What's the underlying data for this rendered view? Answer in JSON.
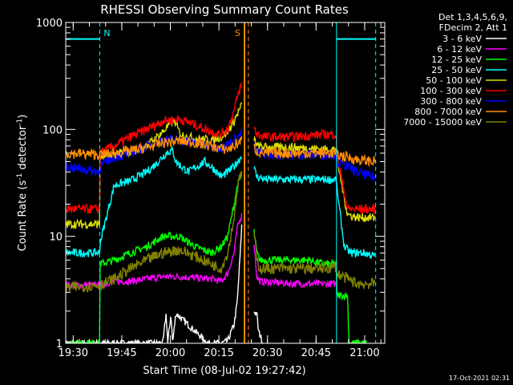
{
  "chart_data": {
    "type": "line",
    "title": "RHESSI Observing Summary Count Rates",
    "xlabel": "Start Time (08-Jul-02 19:27:42)",
    "ylabel": "Count Rate (s",
    "ylabel_sup": "-1",
    "ylabel_mid": " detector",
    "ylabel_sup2": "-1",
    "ylabel_end": ")",
    "x_unit": "minutes after 19:27:42",
    "xlim": [
      0,
      98.5
    ],
    "ylim": [
      1,
      1000
    ],
    "yscale": "log",
    "x_ticks": [
      {
        "value": 2.3,
        "label": "19:30"
      },
      {
        "value": 17.3,
        "label": "19:45"
      },
      {
        "value": 32.3,
        "label": "20:00"
      },
      {
        "value": 47.3,
        "label": "20:15"
      },
      {
        "value": 62.3,
        "label": "20:30"
      },
      {
        "value": 77.3,
        "label": "20:45"
      },
      {
        "value": 92.3,
        "label": "21:00"
      }
    ],
    "y_ticks": [
      {
        "value": 1,
        "label": "1"
      },
      {
        "value": 10,
        "label": "10"
      },
      {
        "value": 100,
        "label": "100"
      },
      {
        "value": 1000,
        "label": "1000"
      }
    ],
    "legend": {
      "position": "top-right",
      "header": [
        "Det 1,3,4,5,6,9,",
        "FDecim 2, Att 1"
      ],
      "entries": [
        {
          "label": "3 - 6 keV",
          "color": "#ffffff"
        },
        {
          "label": "6 - 12 keV",
          "color": "#ff00ff"
        },
        {
          "label": "12 - 25 keV",
          "color": "#00ff00"
        },
        {
          "label": "25 - 50 keV",
          "color": "#00ffff"
        },
        {
          "label": "50 - 100 keV",
          "color": "#dddd00"
        },
        {
          "label": "100 - 300 keV",
          "color": "#ff0000"
        },
        {
          "label": "300 - 800 keV",
          "color": "#0000ff"
        },
        {
          "label": "800 - 7000 keV",
          "color": "#ff8c00"
        },
        {
          "label": "7000 - 15000 keV",
          "color": "#808000"
        }
      ]
    },
    "markers": [
      {
        "label": "N",
        "x": 10.5,
        "color": "#00ffff",
        "style": "dashed"
      },
      {
        "label": "",
        "x": 0,
        "color": "#00ffff",
        "style": "solid"
      },
      {
        "label": "S",
        "x": 55.2,
        "color": "#ff8c00",
        "style": "solid"
      },
      {
        "label": "",
        "x": 56.4,
        "color": "#ff8c00",
        "style": "dashed"
      },
      {
        "label": "",
        "x": 83.6,
        "color": "#00ffff",
        "style": "solid"
      },
      {
        "label": "",
        "x": 95.7,
        "color": "#00ffff",
        "style": "dashed"
      }
    ],
    "night_level": {
      "value": 700,
      "color": "#00ffff",
      "segments": [
        [
          0,
          10.5
        ],
        [
          83.6,
          95.7
        ]
      ]
    },
    "gaps": [
      [
        54.5,
        58
      ]
    ],
    "series": [
      {
        "name": "3 - 6 keV",
        "color": "#ffffff",
        "x": [
          0,
          10.5,
          10.5,
          30,
          31,
          31.5,
          32.5,
          33,
          34,
          44,
          46,
          48,
          50,
          52,
          53,
          54,
          54.5,
          58,
          59,
          59.5,
          61
        ],
        "y": [
          1,
          1,
          1,
          1,
          1.9,
          1,
          1.9,
          1,
          1.9,
          1,
          1,
          1,
          1.05,
          1.5,
          2.5,
          8,
          15,
          2,
          1.9,
          1.3,
          1
        ]
      },
      {
        "name": "6 - 12 keV",
        "color": "#ff00ff",
        "x": [
          0,
          10.5,
          10.5,
          15,
          20,
          25,
          30,
          35,
          40,
          45,
          48,
          50,
          52,
          53,
          54,
          54.5,
          58,
          59,
          60,
          65,
          70,
          75,
          80,
          83.6
        ],
        "y": [
          3.5,
          3.5,
          3.5,
          3.8,
          3.8,
          4.0,
          4.2,
          4.2,
          4.1,
          4.0,
          3.8,
          4.5,
          7,
          12,
          15,
          16,
          10,
          4.2,
          3.8,
          3.7,
          3.6,
          3.6,
          3.6,
          3.6
        ]
      },
      {
        "name": "12 - 25 keV",
        "color": "#00ff00",
        "x": [
          0,
          10.5,
          10.5,
          15,
          20,
          25,
          30,
          35,
          40,
          45,
          48,
          50,
          52,
          53,
          54,
          54.5,
          58,
          59,
          60,
          65,
          70,
          75,
          80,
          83.6,
          83.6,
          87,
          87.5,
          93
        ],
        "y": [
          1,
          1,
          5.5,
          6,
          7,
          8,
          10,
          10,
          8,
          7,
          8,
          10,
          20,
          30,
          35,
          38,
          12,
          7,
          6,
          6,
          6,
          6,
          5.5,
          5.5,
          2.8,
          2.8,
          1,
          1
        ]
      },
      {
        "name": "25 - 50 keV",
        "color": "#00ffff",
        "x": [
          0,
          10.5,
          10.5,
          15,
          20,
          25,
          28,
          31,
          33,
          34,
          36,
          38,
          40,
          43,
          46,
          48,
          50,
          52,
          54,
          54.5,
          58,
          59,
          62,
          70,
          80,
          83.6,
          83.6,
          86,
          88,
          92,
          95.7
        ],
        "y": [
          7,
          7,
          8.5,
          30,
          33,
          40,
          48,
          60,
          64,
          50,
          44,
          40,
          44,
          50,
          42,
          36,
          40,
          45,
          55,
          58,
          45,
          36,
          34,
          34,
          34,
          34,
          30,
          8,
          7,
          7,
          6.5
        ]
      },
      {
        "name": "50 - 100 keV",
        "color": "#dddd00",
        "x": [
          0,
          10.5,
          10.5,
          15,
          20,
          25,
          30,
          33,
          34,
          35,
          36,
          38,
          40,
          45,
          48,
          50,
          52,
          53,
          54,
          54.5,
          58,
          59,
          62,
          70,
          80,
          83.6,
          83.6,
          87,
          90,
          95.7
        ],
        "y": [
          13,
          13,
          55,
          58,
          62,
          70,
          95,
          120,
          115,
          95,
          88,
          85,
          82,
          80,
          85,
          95,
          120,
          140,
          160,
          170,
          85,
          70,
          68,
          68,
          65,
          65,
          55,
          16,
          15,
          15
        ]
      },
      {
        "name": "100 - 300 keV",
        "color": "#ff0000",
        "x": [
          0,
          10.5,
          10.5,
          15,
          20,
          25,
          30,
          35,
          40,
          45,
          48,
          50,
          52,
          53,
          54,
          54.5,
          58,
          59,
          62,
          70,
          80,
          83.6,
          83.6,
          87,
          90,
          95.7
        ],
        "y": [
          18,
          18,
          60,
          70,
          85,
          100,
          120,
          125,
          110,
          95,
          90,
          100,
          150,
          200,
          250,
          270,
          110,
          90,
          85,
          85,
          90,
          90,
          60,
          18,
          18,
          18
        ]
      },
      {
        "name": "300 - 800 keV",
        "color": "#0000ff",
        "x": [
          0,
          10.5,
          10.5,
          15,
          20,
          25,
          30,
          35,
          40,
          45,
          48,
          50,
          52,
          54,
          54.5,
          58,
          59,
          62,
          70,
          80,
          83.6,
          83.6,
          87,
          90,
          95.7
        ],
        "y": [
          45,
          40,
          45,
          55,
          60,
          70,
          80,
          80,
          75,
          70,
          68,
          72,
          80,
          90,
          95,
          70,
          62,
          58,
          58,
          58,
          58,
          50,
          45,
          40,
          35
        ]
      },
      {
        "name": "800 - 7000 keV",
        "color": "#ff8c00",
        "x": [
          0,
          10.5,
          10.5,
          15,
          20,
          25,
          30,
          35,
          40,
          45,
          48,
          50,
          52,
          54,
          54.5,
          58,
          59,
          62,
          70,
          80,
          83.6,
          83.6,
          87,
          90,
          95.7
        ],
        "y": [
          60,
          58,
          58,
          60,
          63,
          68,
          75,
          78,
          75,
          70,
          66,
          65,
          70,
          78,
          80,
          70,
          62,
          60,
          60,
          60,
          60,
          58,
          55,
          52,
          50
        ]
      },
      {
        "name": "7000 - 15000 keV",
        "color": "#808000",
        "x": [
          0,
          10.5,
          10.5,
          15,
          20,
          25,
          30,
          35,
          40,
          45,
          48,
          50,
          52,
          53,
          54,
          54.5,
          58,
          59,
          60,
          65,
          70,
          75,
          80,
          83.6,
          83.6,
          87,
          90,
          95.7
        ],
        "y": [
          3.3,
          3.5,
          3.5,
          4,
          5,
          6,
          7,
          7.5,
          6.5,
          5.5,
          5,
          7,
          15,
          28,
          38,
          40,
          12,
          6,
          5,
          5,
          5,
          5,
          5,
          5.2,
          4.5,
          4,
          3.6,
          3.6
        ]
      }
    ]
  },
  "footer": {
    "timestamp": "17-Oct-2021 02:31"
  }
}
